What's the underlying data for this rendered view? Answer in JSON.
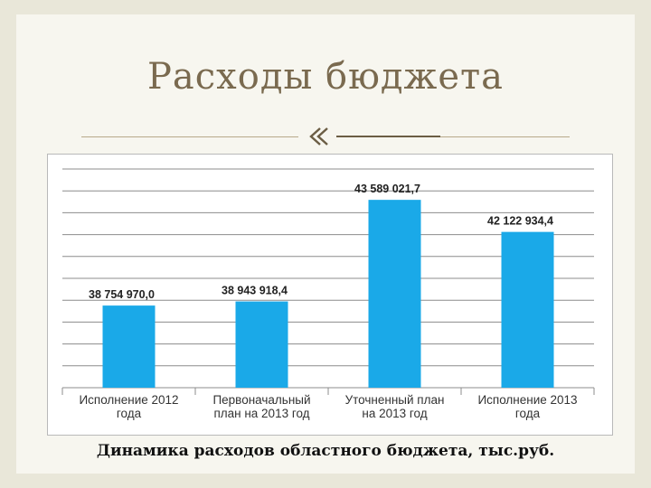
{
  "slide": {
    "title": "Расходы бюджета",
    "caption": "Динамика расходов областного бюджета, тыс.руб.",
    "colors": {
      "bar": "#1aa9e8",
      "title": "#7a6a4f",
      "grid": "#8c8c8c"
    }
  },
  "chart_data": {
    "type": "bar",
    "title": "",
    "xlabel": "",
    "ylabel": "",
    "categories": [
      [
        "Исполнение 2012",
        "года"
      ],
      [
        "Первоначальный",
        "план на 2013 год"
      ],
      [
        "Уточненный план",
        "на 2013 год"
      ],
      [
        "Исполнение 2013",
        "года"
      ]
    ],
    "values": [
      38754970.0,
      38943918.4,
      43589021.7,
      42122934.4
    ],
    "value_labels": [
      "38 754 970,0",
      "38 943 918,4",
      "43 589 021,7",
      "42 122 934,4"
    ],
    "ylim": [
      35000000,
      45000000
    ],
    "grid_step": 1000000,
    "grid": true,
    "legend": "none"
  }
}
